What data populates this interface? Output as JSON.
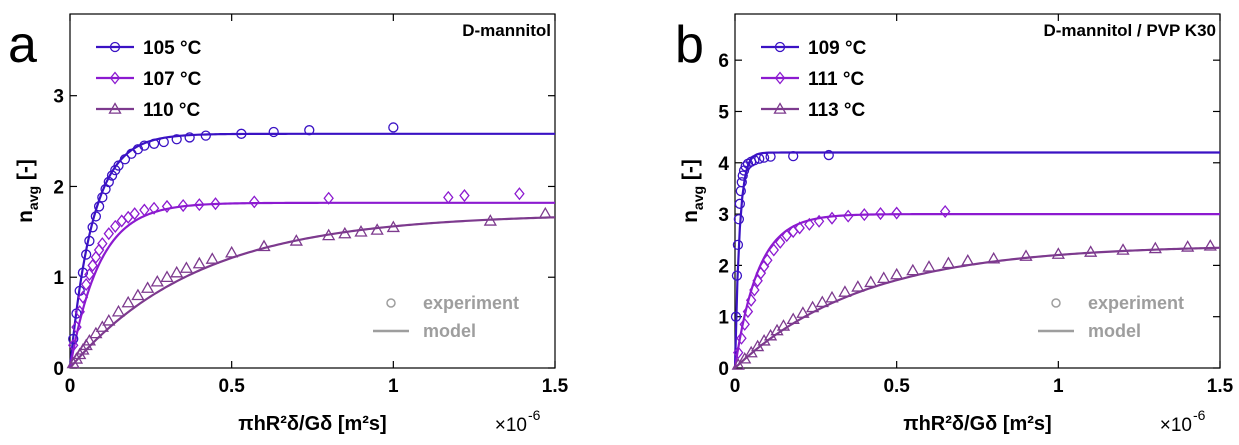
{
  "chart_data": [
    {
      "type": "scatter",
      "panel_label": "a",
      "title": "D-mannitol",
      "xlabel": "πhR²δ/Gδ [m²s]",
      "x_multiplier_label": "×10",
      "x_multiplier_exp": "-6",
      "ylabel": "n",
      "ylabel_sub": "avg",
      "ylabel_unit": "[-]",
      "xlim": [
        0,
        1.5
      ],
      "ylim": [
        0,
        3.9
      ],
      "xticks": [
        0,
        0.5,
        1,
        1.5
      ],
      "xtick_labels": [
        "0",
        "0.5",
        "1",
        "1.5"
      ],
      "yticks": [
        0,
        1,
        2,
        3
      ],
      "ytick_labels": [
        "0",
        "1",
        "2",
        "3"
      ],
      "grid": false,
      "legend_position": "top-left",
      "legend_key_position": "bottom-right",
      "legend_key": [
        {
          "label": "experiment",
          "kind": "marker",
          "color": "#9e9e9e"
        },
        {
          "label": "model",
          "kind": "line",
          "color": "#9e9e9e"
        }
      ],
      "series": [
        {
          "name": "105 °C",
          "marker": "circle",
          "color": "#3a12c4",
          "model": {
            "plateau": 2.58,
            "rate": 14
          },
          "points": [
            [
              0.01,
              0.32
            ],
            [
              0.02,
              0.6
            ],
            [
              0.03,
              0.85
            ],
            [
              0.04,
              1.05
            ],
            [
              0.05,
              1.25
            ],
            [
              0.06,
              1.4
            ],
            [
              0.07,
              1.55
            ],
            [
              0.08,
              1.67
            ],
            [
              0.09,
              1.78
            ],
            [
              0.1,
              1.88
            ],
            [
              0.11,
              1.97
            ],
            [
              0.12,
              2.05
            ],
            [
              0.13,
              2.12
            ],
            [
              0.14,
              2.18
            ],
            [
              0.15,
              2.23
            ],
            [
              0.17,
              2.3
            ],
            [
              0.19,
              2.36
            ],
            [
              0.21,
              2.41
            ],
            [
              0.23,
              2.45
            ],
            [
              0.26,
              2.47
            ],
            [
              0.29,
              2.49
            ],
            [
              0.33,
              2.52
            ],
            [
              0.37,
              2.54
            ],
            [
              0.42,
              2.56
            ],
            [
              0.53,
              2.58
            ],
            [
              0.63,
              2.6
            ],
            [
              0.74,
              2.62
            ],
            [
              1.0,
              2.65
            ]
          ]
        },
        {
          "name": "107 °C",
          "marker": "diamond",
          "color": "#8c1ad0",
          "model": {
            "plateau": 1.82,
            "rate": 11
          },
          "points": [
            [
              0.01,
              0.25
            ],
            [
              0.02,
              0.45
            ],
            [
              0.03,
              0.62
            ],
            [
              0.04,
              0.78
            ],
            [
              0.05,
              0.92
            ],
            [
              0.06,
              1.03
            ],
            [
              0.07,
              1.13
            ],
            [
              0.08,
              1.22
            ],
            [
              0.09,
              1.3
            ],
            [
              0.1,
              1.37
            ],
            [
              0.12,
              1.48
            ],
            [
              0.14,
              1.56
            ],
            [
              0.16,
              1.62
            ],
            [
              0.18,
              1.66
            ],
            [
              0.2,
              1.7
            ],
            [
              0.23,
              1.74
            ],
            [
              0.26,
              1.76
            ],
            [
              0.3,
              1.78
            ],
            [
              0.35,
              1.79
            ],
            [
              0.4,
              1.8
            ],
            [
              0.45,
              1.81
            ],
            [
              0.57,
              1.83
            ],
            [
              0.8,
              1.87
            ],
            [
              1.17,
              1.88
            ],
            [
              1.22,
              1.9
            ],
            [
              1.39,
              1.92
            ]
          ]
        },
        {
          "name": "110 °C",
          "marker": "triangle",
          "color": "#7d3a8e",
          "model": {
            "plateau": 1.7,
            "rate": 2.5
          },
          "points": [
            [
              0.01,
              0.05
            ],
            [
              0.02,
              0.1
            ],
            [
              0.03,
              0.15
            ],
            [
              0.04,
              0.2
            ],
            [
              0.05,
              0.25
            ],
            [
              0.06,
              0.3
            ],
            [
              0.08,
              0.38
            ],
            [
              0.1,
              0.45
            ],
            [
              0.12,
              0.52
            ],
            [
              0.15,
              0.62
            ],
            [
              0.18,
              0.72
            ],
            [
              0.21,
              0.8
            ],
            [
              0.24,
              0.88
            ],
            [
              0.27,
              0.95
            ],
            [
              0.3,
              1.0
            ],
            [
              0.33,
              1.05
            ],
            [
              0.36,
              1.1
            ],
            [
              0.4,
              1.15
            ],
            [
              0.44,
              1.2
            ],
            [
              0.5,
              1.27
            ],
            [
              0.6,
              1.34
            ],
            [
              0.7,
              1.4
            ],
            [
              0.8,
              1.46
            ],
            [
              0.85,
              1.48
            ],
            [
              0.9,
              1.5
            ],
            [
              0.95,
              1.52
            ],
            [
              1.0,
              1.55
            ],
            [
              1.3,
              1.62
            ],
            [
              1.47,
              1.7
            ]
          ]
        }
      ]
    },
    {
      "type": "scatter",
      "panel_label": "b",
      "title": "D-mannitol / PVP K30",
      "xlabel": "πhR²δ/Gδ [m²s]",
      "x_multiplier_label": "×10",
      "x_multiplier_exp": "-6",
      "ylabel": "n",
      "ylabel_sub": "avg",
      "ylabel_unit": "[-]",
      "xlim": [
        0,
        1.5
      ],
      "ylim": [
        0,
        6.9
      ],
      "xticks": [
        0,
        0.5,
        1,
        1.5
      ],
      "xtick_labels": [
        "0",
        "0.5",
        "1",
        "1.5"
      ],
      "yticks": [
        0,
        1,
        2,
        3,
        4,
        5,
        6
      ],
      "ytick_labels": [
        "0",
        "1",
        "2",
        "3",
        "4",
        "5",
        "6"
      ],
      "grid": false,
      "legend_position": "top-left",
      "legend_key_position": "bottom-right",
      "legend_key": [
        {
          "label": "experiment",
          "kind": "marker",
          "color": "#9e9e9e"
        },
        {
          "label": "model",
          "kind": "line",
          "color": "#9e9e9e"
        }
      ],
      "series": [
        {
          "name": "109 °C",
          "marker": "circle",
          "color": "#3a12c4",
          "model": {
            "plateau": 4.2,
            "rate": 70
          },
          "points": [
            [
              0.003,
              1.0
            ],
            [
              0.006,
              1.8
            ],
            [
              0.009,
              2.4
            ],
            [
              0.012,
              2.9
            ],
            [
              0.015,
              3.2
            ],
            [
              0.018,
              3.45
            ],
            [
              0.021,
              3.62
            ],
            [
              0.024,
              3.75
            ],
            [
              0.028,
              3.85
            ],
            [
              0.033,
              3.93
            ],
            [
              0.04,
              3.98
            ],
            [
              0.05,
              4.02
            ],
            [
              0.06,
              4.05
            ],
            [
              0.075,
              4.08
            ],
            [
              0.09,
              4.1
            ],
            [
              0.11,
              4.12
            ],
            [
              0.18,
              4.13
            ],
            [
              0.29,
              4.15
            ]
          ]
        },
        {
          "name": "111 °C",
          "marker": "diamond",
          "color": "#8c1ad0",
          "model": {
            "plateau": 3.0,
            "rate": 14
          },
          "points": [
            [
              0.01,
              0.3
            ],
            [
              0.02,
              0.58
            ],
            [
              0.03,
              0.85
            ],
            [
              0.04,
              1.1
            ],
            [
              0.05,
              1.32
            ],
            [
              0.06,
              1.52
            ],
            [
              0.07,
              1.7
            ],
            [
              0.08,
              1.85
            ],
            [
              0.09,
              1.98
            ],
            [
              0.1,
              2.1
            ],
            [
              0.12,
              2.3
            ],
            [
              0.14,
              2.45
            ],
            [
              0.16,
              2.58
            ],
            [
              0.18,
              2.66
            ],
            [
              0.2,
              2.73
            ],
            [
              0.23,
              2.8
            ],
            [
              0.26,
              2.86
            ],
            [
              0.3,
              2.92
            ],
            [
              0.35,
              2.96
            ],
            [
              0.4,
              2.99
            ],
            [
              0.45,
              3.01
            ],
            [
              0.5,
              3.02
            ],
            [
              0.65,
              3.05
            ]
          ]
        },
        {
          "name": "113 °C",
          "marker": "triangle",
          "color": "#7d3a8e",
          "model": {
            "plateau": 2.4,
            "rate": 2.5
          },
          "points": [
            [
              0.01,
              0.06
            ],
            [
              0.03,
              0.18
            ],
            [
              0.05,
              0.3
            ],
            [
              0.07,
              0.42
            ],
            [
              0.09,
              0.53
            ],
            [
              0.11,
              0.63
            ],
            [
              0.13,
              0.73
            ],
            [
              0.15,
              0.82
            ],
            [
              0.18,
              0.95
            ],
            [
              0.21,
              1.07
            ],
            [
              0.24,
              1.18
            ],
            [
              0.27,
              1.28
            ],
            [
              0.3,
              1.37
            ],
            [
              0.34,
              1.48
            ],
            [
              0.38,
              1.58
            ],
            [
              0.42,
              1.67
            ],
            [
              0.46,
              1.75
            ],
            [
              0.5,
              1.82
            ],
            [
              0.55,
              1.9
            ],
            [
              0.6,
              1.97
            ],
            [
              0.66,
              2.04
            ],
            [
              0.72,
              2.09
            ],
            [
              0.8,
              2.13
            ],
            [
              0.9,
              2.18
            ],
            [
              1.0,
              2.22
            ],
            [
              1.1,
              2.26
            ],
            [
              1.2,
              2.3
            ],
            [
              1.3,
              2.33
            ],
            [
              1.4,
              2.36
            ],
            [
              1.47,
              2.38
            ]
          ]
        }
      ]
    }
  ]
}
